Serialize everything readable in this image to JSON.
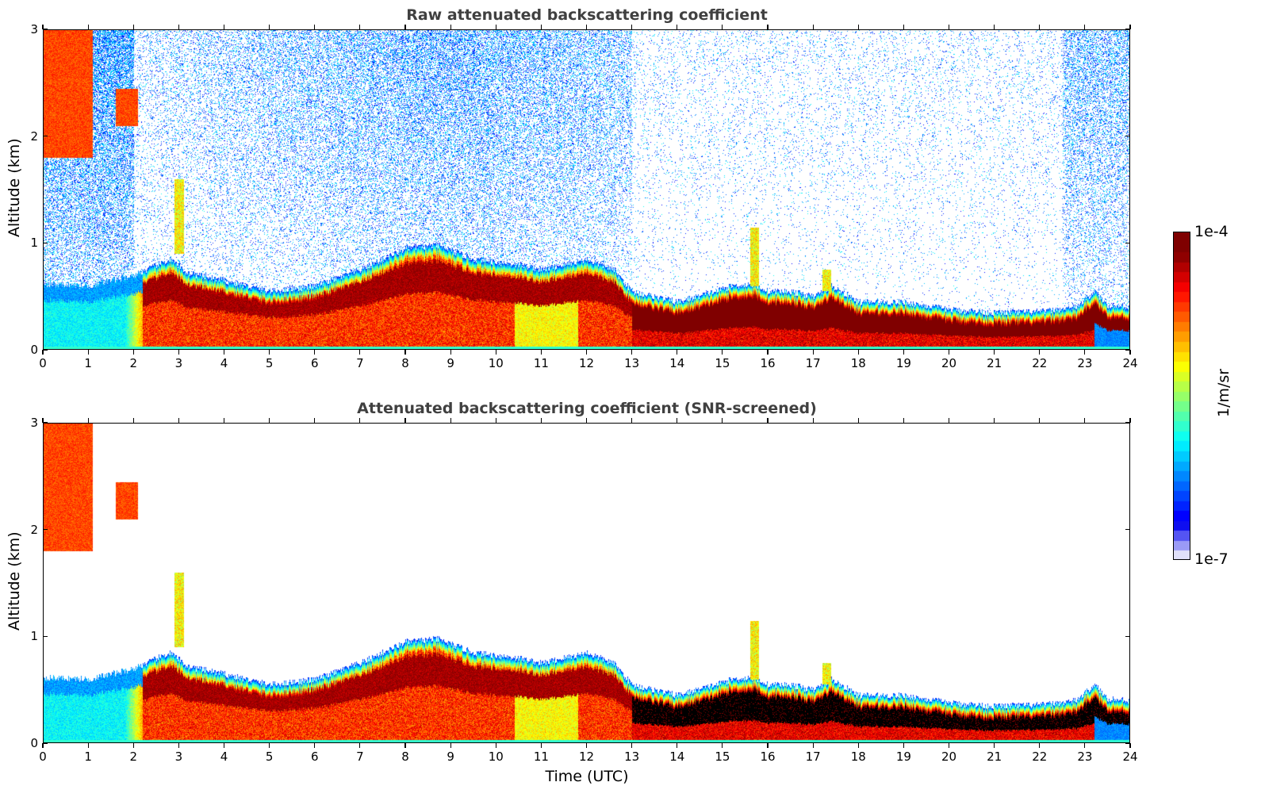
{
  "chart_data": [
    {
      "type": "heatmap",
      "title": "Raw attenuated backscattering coefficient",
      "xlabel": "",
      "ylabel": "Altitude (km)",
      "xlim": [
        0,
        24
      ],
      "ylim": [
        0,
        3
      ],
      "xticks": [
        "0",
        "1",
        "2",
        "3",
        "4",
        "5",
        "6",
        "7",
        "8",
        "9",
        "10",
        "11",
        "12",
        "13",
        "14",
        "15",
        "16",
        "17",
        "18",
        "19",
        "20",
        "21",
        "22",
        "23",
        "24"
      ],
      "yticks": [
        "0",
        "1",
        "2",
        "3"
      ],
      "screened": false,
      "boundary_layer_top_km": [
        [
          0,
          0.62
        ],
        [
          1,
          0.6
        ],
        [
          2,
          0.7
        ],
        [
          2.8,
          0.85
        ],
        [
          3.2,
          0.72
        ],
        [
          4,
          0.65
        ],
        [
          5,
          0.55
        ],
        [
          6,
          0.6
        ],
        [
          7,
          0.75
        ],
        [
          8,
          0.95
        ],
        [
          8.7,
          0.98
        ],
        [
          9.5,
          0.85
        ],
        [
          10.5,
          0.8
        ],
        [
          11,
          0.75
        ],
        [
          12,
          0.85
        ],
        [
          12.6,
          0.75
        ],
        [
          13,
          0.55
        ],
        [
          14,
          0.45
        ],
        [
          14.6,
          0.52
        ],
        [
          15.2,
          0.6
        ],
        [
          15.7,
          0.62
        ],
        [
          16,
          0.55
        ],
        [
          16.5,
          0.55
        ],
        [
          17,
          0.5
        ],
        [
          17.4,
          0.6
        ],
        [
          18,
          0.45
        ],
        [
          19,
          0.45
        ],
        [
          20,
          0.38
        ],
        [
          21,
          0.35
        ],
        [
          22,
          0.36
        ],
        [
          22.8,
          0.4
        ],
        [
          23.2,
          0.55
        ],
        [
          23.5,
          0.42
        ],
        [
          24,
          0.4
        ]
      ],
      "features": [
        {
          "name": "cloud",
          "t0": 0.0,
          "t1": 1.1,
          "z0": 1.8,
          "z1": 3.0
        },
        {
          "name": "cloud",
          "t0": 1.6,
          "t1": 2.1,
          "z0": 2.1,
          "z1": 2.45
        },
        {
          "name": "plume",
          "t0": 2.9,
          "t1": 3.1,
          "z0": 0.9,
          "z1": 1.6
        },
        {
          "name": "plume",
          "t0": 15.6,
          "t1": 15.8,
          "z0": 0.6,
          "z1": 1.15
        },
        {
          "name": "plume",
          "t0": 17.2,
          "t1": 17.4,
          "z0": 0.55,
          "z1": 0.75
        }
      ]
    },
    {
      "type": "heatmap",
      "title": "Attenuated backscattering coefficient (SNR-screened)",
      "xlabel": "Time (UTC)",
      "ylabel": "Altitude (km)",
      "xlim": [
        0,
        24
      ],
      "ylim": [
        0,
        3
      ],
      "xticks": [
        "0",
        "1",
        "2",
        "3",
        "4",
        "5",
        "6",
        "7",
        "8",
        "9",
        "10",
        "11",
        "12",
        "13",
        "14",
        "15",
        "16",
        "17",
        "18",
        "19",
        "20",
        "21",
        "22",
        "23",
        "24"
      ],
      "yticks": [
        "0",
        "1",
        "2",
        "3"
      ],
      "screened": true
    }
  ],
  "colorbar": {
    "label": "1/m/sr",
    "max_label": "1e-4",
    "min_label": "1e-7",
    "vmin": 1e-07,
    "vmax": 0.0001,
    "scale": "log",
    "colormap": "jet"
  }
}
